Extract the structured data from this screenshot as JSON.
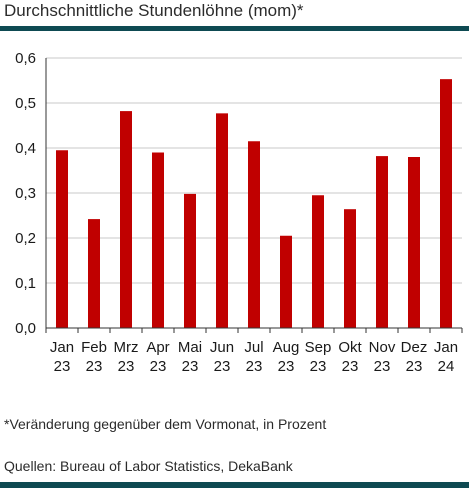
{
  "title": "Durchschnittliche Stundenlöhne (mom)*",
  "footnote": "*Veränderung gegenüber dem Vormonat, in Prozent",
  "source": "Quellen: Bureau of Labor Statistics, DekaBank",
  "colors": {
    "bar": "#c00000",
    "rule": "#0e4a52",
    "grid": "#c8c8c8"
  },
  "chart_data": {
    "type": "bar",
    "title": "Durchschnittliche Stundenlöhne (mom)*",
    "xlabel": "",
    "ylabel": "",
    "categories": [
      [
        "Jan",
        "23"
      ],
      [
        "Feb",
        "23"
      ],
      [
        "Mrz",
        "23"
      ],
      [
        "Apr",
        "23"
      ],
      [
        "Mai",
        "23"
      ],
      [
        "Jun",
        "23"
      ],
      [
        "Jul",
        "23"
      ],
      [
        "Aug",
        "23"
      ],
      [
        "Sep",
        "23"
      ],
      [
        "Okt",
        "23"
      ],
      [
        "Nov",
        "23"
      ],
      [
        "Dez",
        "23"
      ],
      [
        "Jan",
        "24"
      ]
    ],
    "values": [
      0.395,
      0.242,
      0.482,
      0.39,
      0.298,
      0.477,
      0.415,
      0.205,
      0.295,
      0.264,
      0.382,
      0.38,
      0.553
    ],
    "ylim": [
      0,
      0.6
    ],
    "yticks": [
      "0,0",
      "0,1",
      "0,2",
      "0,3",
      "0,4",
      "0,5",
      "0,6"
    ],
    "grid": "horizontal",
    "legend": "none"
  }
}
